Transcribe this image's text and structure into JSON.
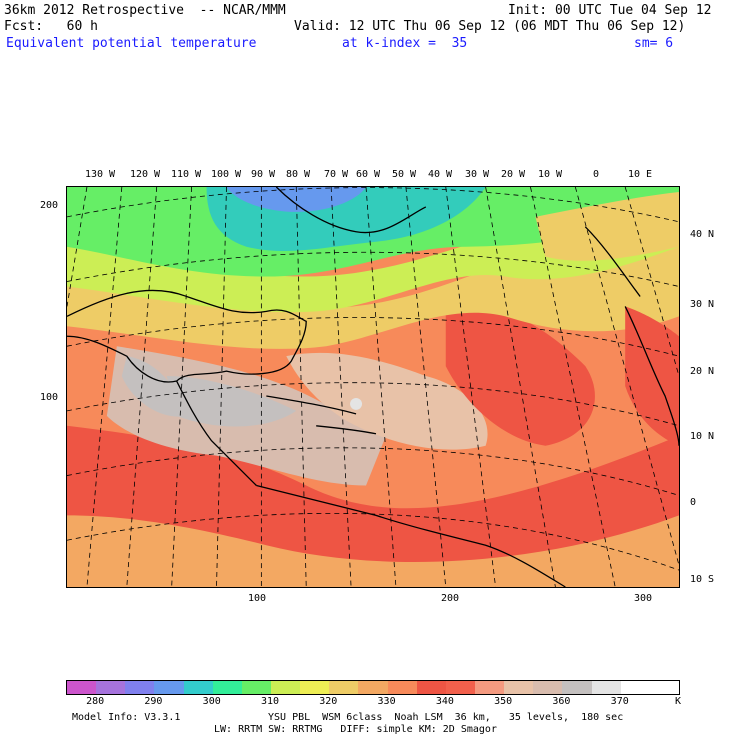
{
  "header": {
    "line1_left": "36km 2012 Retrospective  -- NCAR/MMM",
    "line1_right": "Init: 00 UTC Tue 04 Sep 12",
    "line2_left": "Fcst:   60 h",
    "line2_right": "Valid: 12 UTC Thu 06 Sep 12 (06 MDT Thu 06 Sep 12)",
    "line3_field": "Equivalent potential temperature",
    "line3_level": "at k-index =  35",
    "line3_sm": "sm= 6"
  },
  "axes": {
    "top_lon": [
      "130 W",
      "120 W",
      "110 W",
      "100 W",
      "90 W",
      "80 W",
      "70 W",
      "60 W",
      "50 W",
      "40 W",
      "30 W",
      "20 W",
      "10 W",
      "0",
      "10 E"
    ],
    "right_lat": [
      "40 N",
      "30 N",
      "20 N",
      "10 N",
      "0",
      "10 S"
    ],
    "left_grid": [
      "200",
      "100"
    ],
    "bottom_grid": [
      "100",
      "200",
      "300"
    ]
  },
  "colorbar": {
    "colors": [
      "#cc55cc",
      "#a673dd",
      "#8080ee",
      "#6699ee",
      "#33cccc",
      "#33ee99",
      "#66ee66",
      "#ccee55",
      "#eeee55",
      "#eecc66",
      "#f3a862",
      "#f78a5a",
      "#ee5544",
      "#f2604c",
      "#f49a80",
      "#e8c2a8",
      "#d8bcae",
      "#c4c0bf",
      "#e4e4e4",
      "#ffffff",
      "#ffffff"
    ],
    "labels": [
      "280",
      "290",
      "300",
      "310",
      "320",
      "330",
      "340",
      "350",
      "360",
      "370",
      "K"
    ]
  },
  "footer": {
    "line1_left": "Model Info: V3.3.1",
    "line1_right": "YSU PBL  WSM 6class  Noah LSM  36 km,   35 levels,  180 sec",
    "line2": "LW: RRTM SW: RRTMG   DIFF: simple KM: 2D Smagor"
  }
}
